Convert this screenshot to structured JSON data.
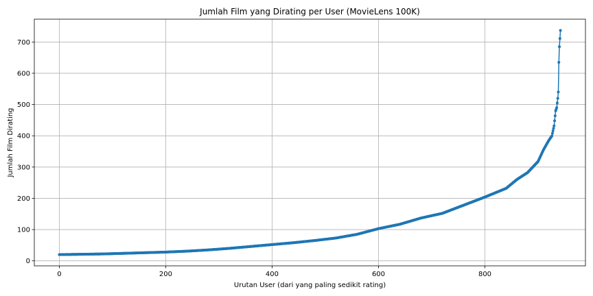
{
  "chart_data": {
    "type": "line",
    "title": "Jumlah Film yang Dirating per User (MovieLens 100K)",
    "xlabel": "Urutan User (dari yang paling sedikit rating)",
    "ylabel": "Jumlah Film Dirating",
    "xlim": [
      -47,
      989
    ],
    "ylim": [
      -16,
      773
    ],
    "xticks": [
      0,
      200,
      400,
      600,
      800
    ],
    "yticks": [
      0,
      100,
      200,
      300,
      400,
      500,
      600,
      700
    ],
    "grid": true,
    "series": [
      {
        "color": "#1f77b4",
        "marker": "circle",
        "points": [
          [
            0,
            20
          ],
          [
            40,
            21
          ],
          [
            80,
            22
          ],
          [
            120,
            24
          ],
          [
            160,
            26
          ],
          [
            200,
            28
          ],
          [
            240,
            31
          ],
          [
            280,
            35
          ],
          [
            320,
            40
          ],
          [
            360,
            46
          ],
          [
            400,
            52
          ],
          [
            440,
            58
          ],
          [
            480,
            65
          ],
          [
            520,
            73
          ],
          [
            560,
            85
          ],
          [
            600,
            103
          ],
          [
            640,
            117
          ],
          [
            680,
            137
          ],
          [
            720,
            152
          ],
          [
            760,
            178
          ],
          [
            800,
            204
          ],
          [
            820,
            218
          ],
          [
            840,
            232
          ],
          [
            860,
            260
          ],
          [
            880,
            282
          ],
          [
            900,
            318
          ],
          [
            910,
            355
          ],
          [
            920,
            385
          ],
          [
            926,
            400
          ],
          [
            930,
            432
          ],
          [
            933,
            480
          ],
          [
            935,
            490
          ],
          [
            937,
            520
          ],
          [
            938,
            540
          ],
          [
            939,
            635
          ],
          [
            940,
            685
          ],
          [
            942,
            737
          ]
        ]
      }
    ]
  }
}
